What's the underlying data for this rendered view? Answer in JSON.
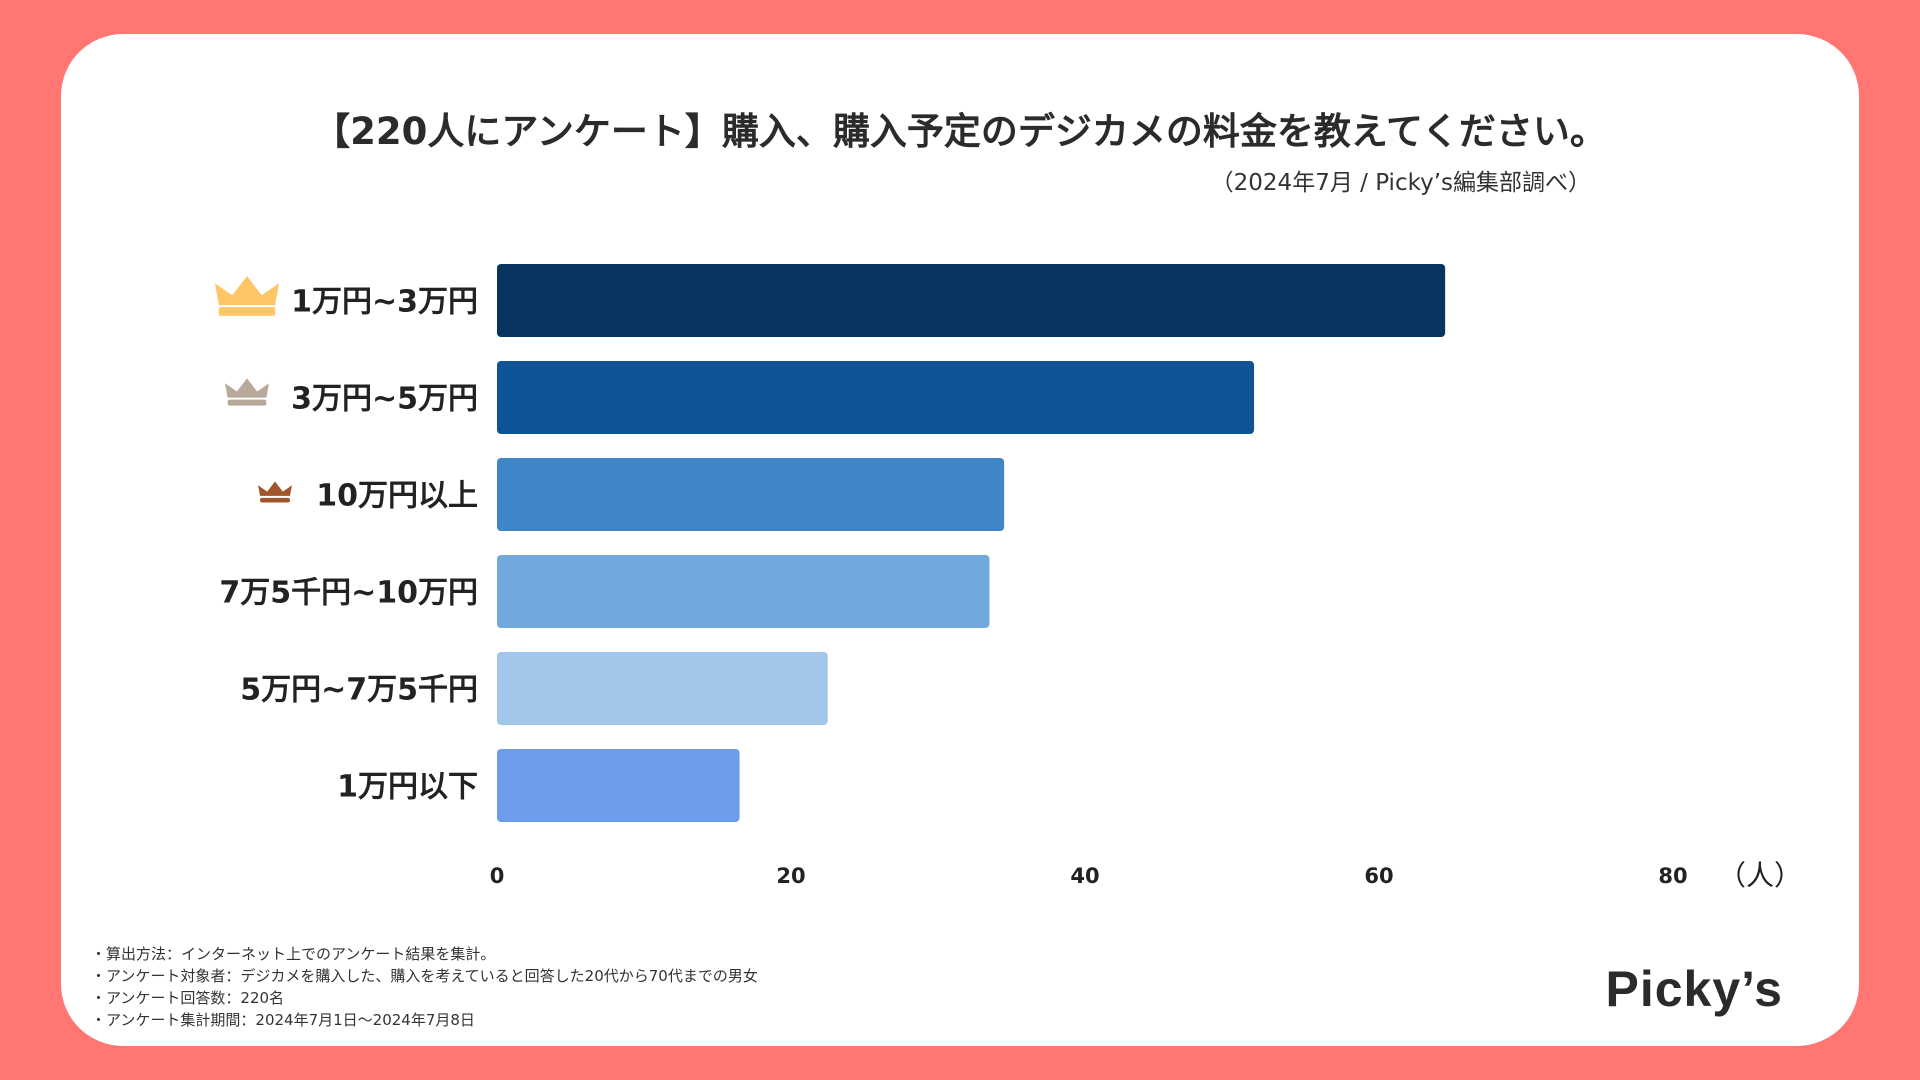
{
  "title": "【220人にアンケート】購入、購入予定のデジカメの料金を教えてください。",
  "subtitle": "（2024年7月 / Picky’s編集部調べ）",
  "chart_data": {
    "type": "bar",
    "orientation": "horizontal",
    "categories": [
      "1万円~3万円",
      "3万円~5万円",
      "10万円以上",
      "7万5千円~10万円",
      "5万円~7万5千円",
      "1万円以下"
    ],
    "values": [
      64.5,
      51.5,
      34.5,
      33.5,
      22.5,
      16.5
    ],
    "colors": [
      "#07355F",
      "#0E5395",
      "#3F85C8",
      "#71A9DE",
      "#A2C6EA",
      "#6D9DEA"
    ],
    "rank_icons": [
      "crown-gold-icon",
      "crown-silver-icon",
      "crown-bronze-icon"
    ],
    "rank_icon_colors": [
      "#FFC567",
      "#B9A99A",
      "#A0552A"
    ],
    "xlim": [
      0,
      80
    ],
    "xticks": [
      0,
      20,
      40,
      60,
      80
    ],
    "unit": "（人）"
  },
  "notes": [
    "・算出方法：インターネット上でのアンケート結果を集計。",
    "・アンケート対象者：デジカメを購入した、購入を考えていると回答した20代から70代までの男女",
    "・アンケート回答数：220名",
    "・アンケート集計期間：2024年7月1日〜2024年7月8日"
  ],
  "logo": "Picky’s"
}
